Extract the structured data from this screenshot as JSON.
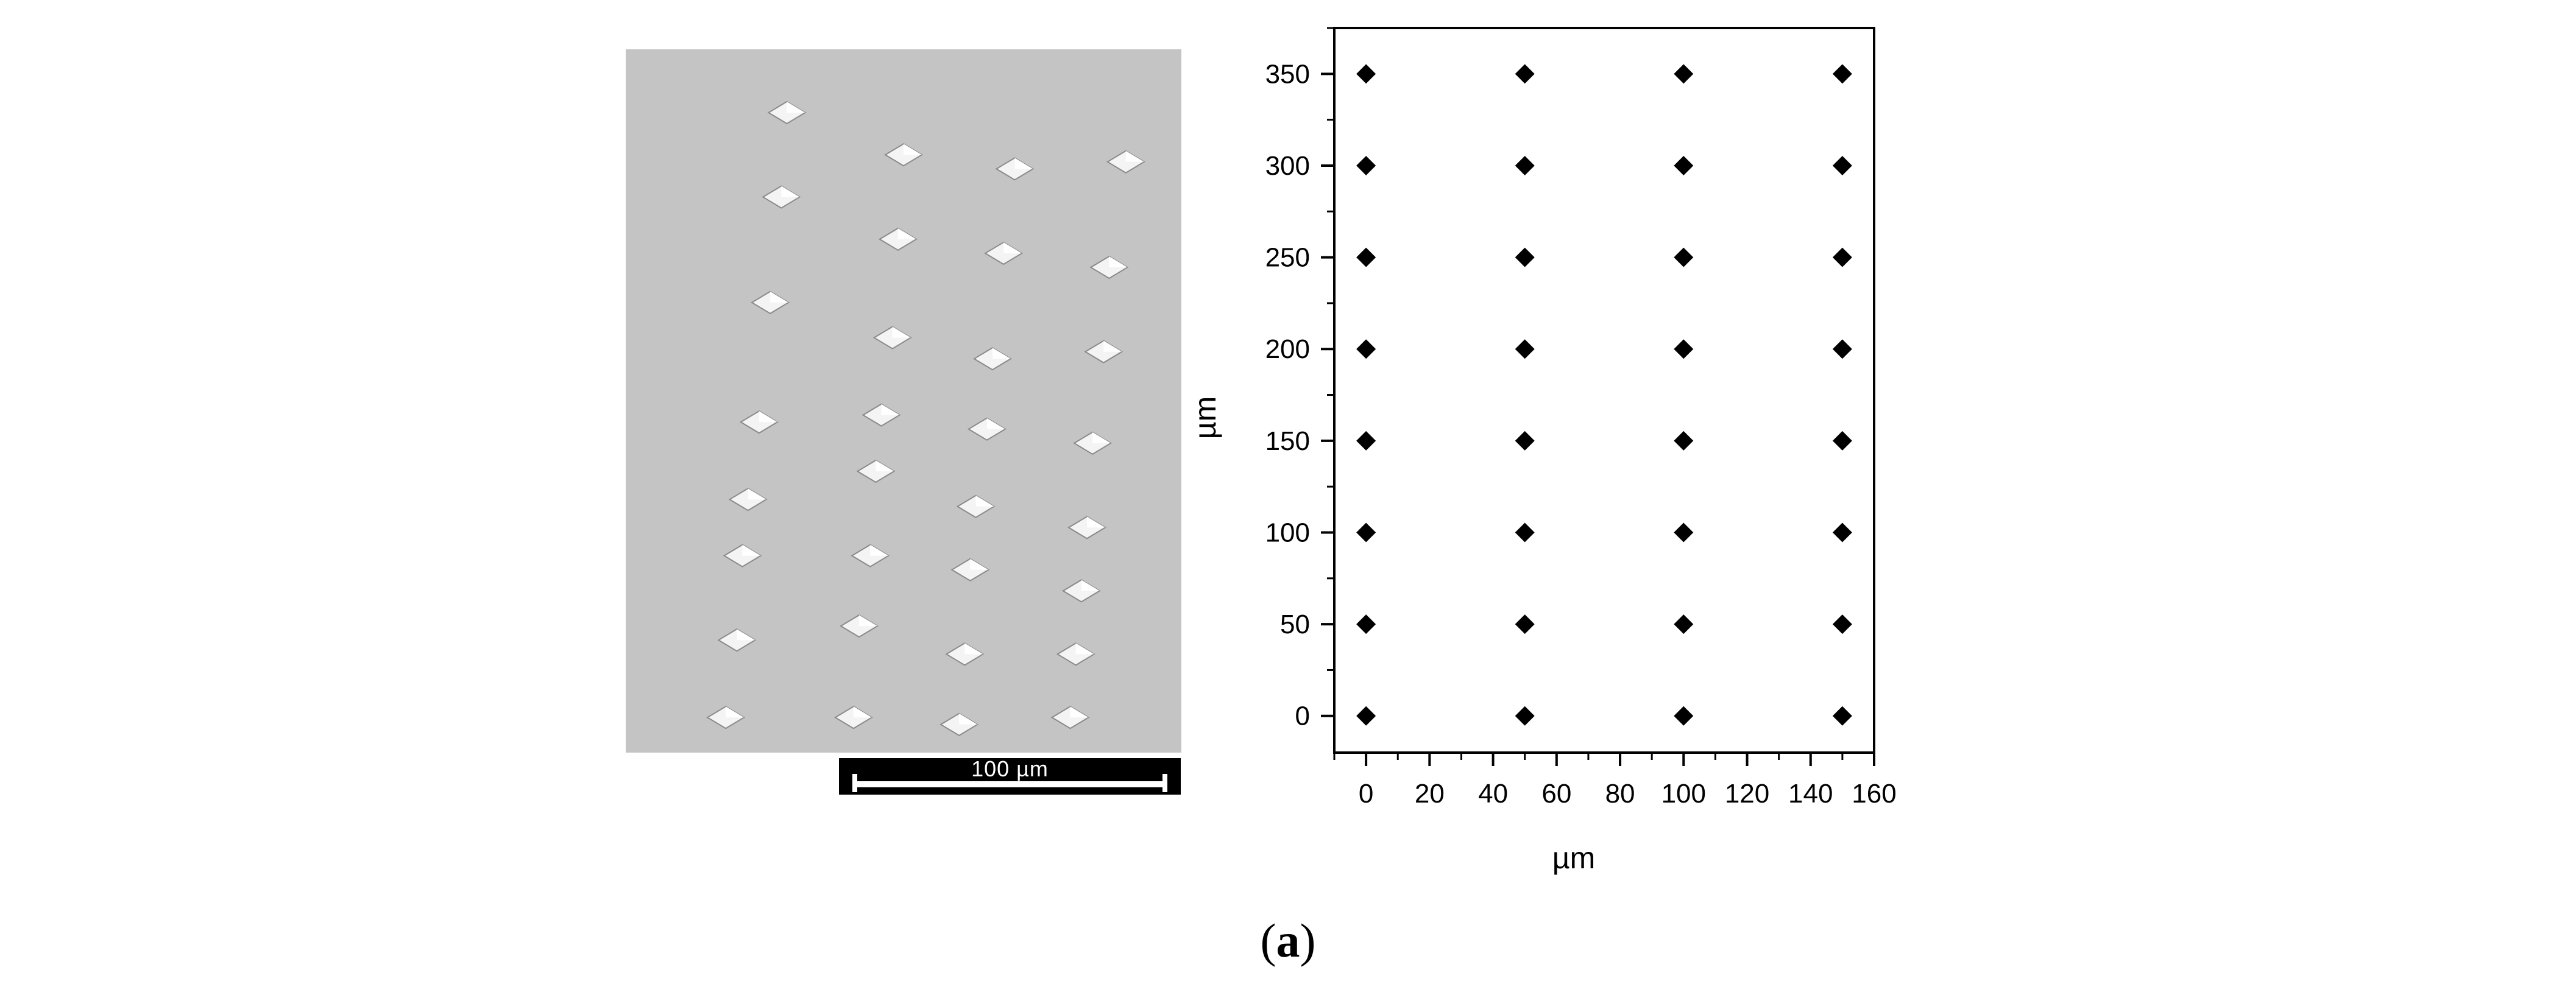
{
  "sem_image": {
    "scale_bar_label": "100 µm",
    "features": [
      [
        0.29,
        0.09
      ],
      [
        0.5,
        0.15
      ],
      [
        0.7,
        0.17
      ],
      [
        0.9,
        0.16
      ],
      [
        0.28,
        0.21
      ],
      [
        0.49,
        0.27
      ],
      [
        0.68,
        0.29
      ],
      [
        0.87,
        0.31
      ],
      [
        0.26,
        0.36
      ],
      [
        0.48,
        0.41
      ],
      [
        0.66,
        0.44
      ],
      [
        0.86,
        0.43
      ],
      [
        0.24,
        0.53
      ],
      [
        0.46,
        0.52
      ],
      [
        0.65,
        0.54
      ],
      [
        0.84,
        0.56
      ],
      [
        0.22,
        0.64
      ],
      [
        0.45,
        0.6
      ],
      [
        0.63,
        0.65
      ],
      [
        0.83,
        0.68
      ],
      [
        0.21,
        0.72
      ],
      [
        0.44,
        0.72
      ],
      [
        0.62,
        0.74
      ],
      [
        0.82,
        0.77
      ],
      [
        0.2,
        0.84
      ],
      [
        0.42,
        0.82
      ],
      [
        0.61,
        0.86
      ],
      [
        0.81,
        0.86
      ],
      [
        0.18,
        0.95
      ],
      [
        0.41,
        0.95
      ],
      [
        0.6,
        0.96
      ],
      [
        0.8,
        0.95
      ]
    ]
  },
  "chart_data": {
    "type": "scatter",
    "xlabel": "µm",
    "ylabel": "µm",
    "xlim": [
      -10,
      160
    ],
    "ylim": [
      -20,
      375
    ],
    "xticks": [
      0,
      20,
      40,
      60,
      80,
      100,
      120,
      140,
      160
    ],
    "yticks": [
      0,
      50,
      100,
      150,
      200,
      250,
      300,
      350
    ],
    "marker": "diamond",
    "marker_color": "#000000",
    "points": [
      [
        0,
        0
      ],
      [
        50,
        0
      ],
      [
        100,
        0
      ],
      [
        150,
        0
      ],
      [
        0,
        50
      ],
      [
        50,
        50
      ],
      [
        100,
        50
      ],
      [
        150,
        50
      ],
      [
        0,
        100
      ],
      [
        50,
        100
      ],
      [
        100,
        100
      ],
      [
        150,
        100
      ],
      [
        0,
        150
      ],
      [
        50,
        150
      ],
      [
        100,
        150
      ],
      [
        150,
        150
      ],
      [
        0,
        200
      ],
      [
        50,
        200
      ],
      [
        100,
        200
      ],
      [
        150,
        200
      ],
      [
        0,
        250
      ],
      [
        50,
        250
      ],
      [
        100,
        250
      ],
      [
        150,
        250
      ],
      [
        0,
        300
      ],
      [
        50,
        300
      ],
      [
        100,
        300
      ],
      [
        150,
        300
      ],
      [
        0,
        350
      ],
      [
        50,
        350
      ],
      [
        100,
        350
      ],
      [
        150,
        350
      ]
    ]
  },
  "caption": "a"
}
